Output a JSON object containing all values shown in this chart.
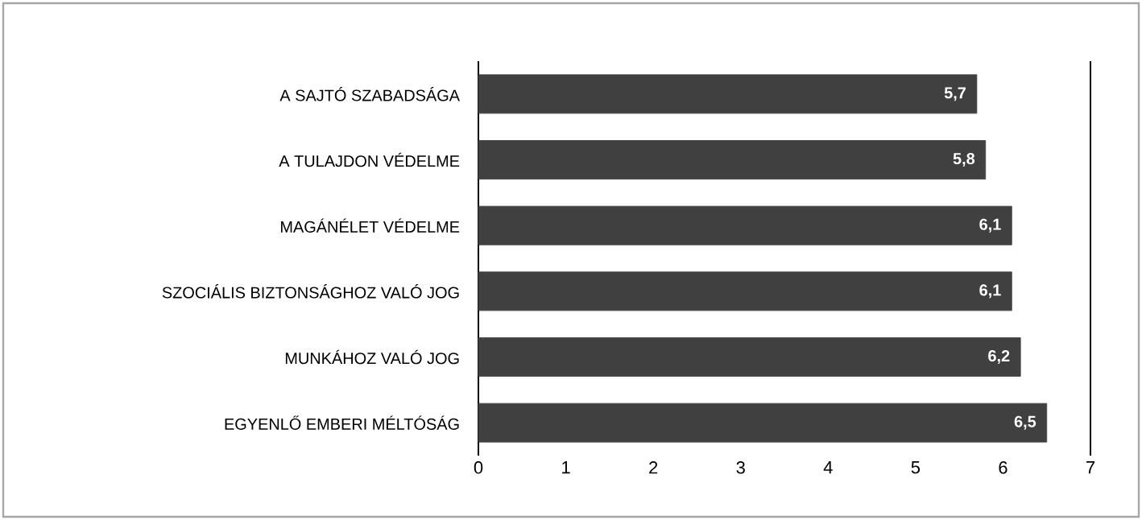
{
  "chart_data": {
    "type": "bar",
    "orientation": "horizontal",
    "categories": [
      "A SAJTÓ SZABADSÁGA",
      "A TULAJDON VÉDELME",
      "MAGÁNÉLET VÉDELME",
      "SZOCIÁLIS BIZTONSÁGHOZ VALÓ JOG",
      "MUNKÁHOZ VALÓ JOG",
      "EGYENLŐ EMBERI MÉLTÓSÁG"
    ],
    "values": [
      5.7,
      5.8,
      6.1,
      6.1,
      6.2,
      6.5
    ],
    "color": "#404040",
    "xlim": [
      0,
      7
    ],
    "xticks": [
      0,
      1,
      2,
      3,
      4,
      5,
      6,
      7
    ],
    "value_labels": [
      "5,7",
      "5,8",
      "6,1",
      "6,1",
      "6,2",
      "6,5"
    ]
  }
}
